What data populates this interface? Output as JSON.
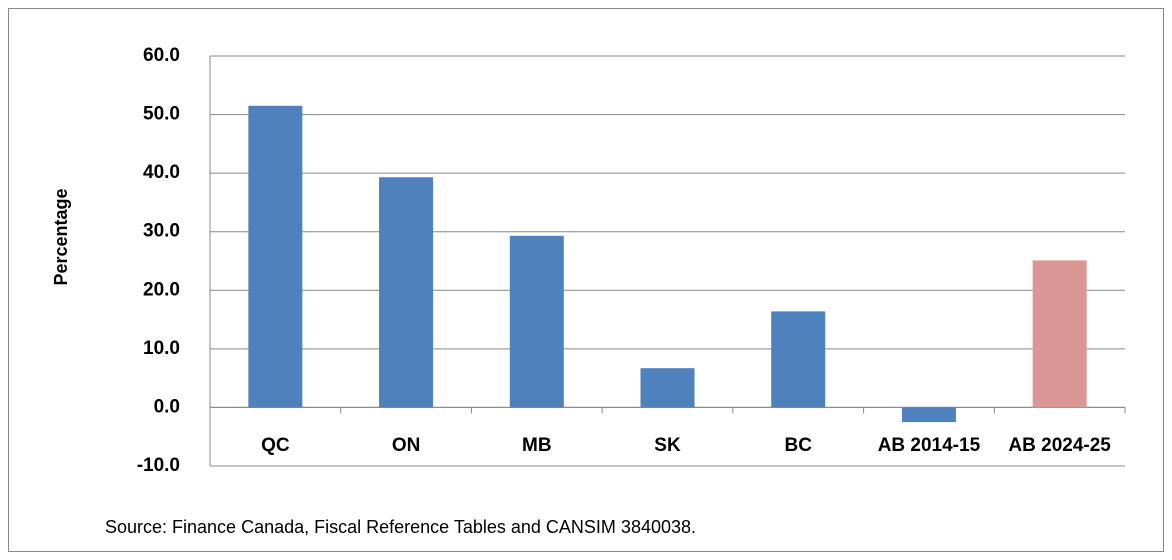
{
  "chart_data": {
    "type": "bar",
    "categories": [
      "QC",
      "ON",
      "MB",
      "SK",
      "BC",
      "AB 2014-15",
      "AB 2024-25"
    ],
    "values": [
      51.5,
      39.3,
      29.3,
      6.7,
      16.4,
      -2.5,
      25.1
    ],
    "colors": [
      "#4f81bd",
      "#4f81bd",
      "#4f81bd",
      "#4f81bd",
      "#4f81bd",
      "#4f81bd",
      "#d99694"
    ],
    "y_label": "Percentage",
    "ylim": [
      -10,
      60
    ],
    "yticks": [
      {
        "value": -10,
        "label": "-10.0"
      },
      {
        "value": 0,
        "label": "0.0"
      },
      {
        "value": 10,
        "label": "10.0"
      },
      {
        "value": 20,
        "label": "20.0"
      },
      {
        "value": 30,
        "label": "30.0"
      },
      {
        "value": 40,
        "label": "40.0"
      },
      {
        "value": 50,
        "label": "50.0"
      },
      {
        "value": 60,
        "label": "60.0"
      }
    ],
    "grid": true,
    "source": "Source: Finance Canada, Fiscal Reference Tables and CANSIM 3840038."
  }
}
